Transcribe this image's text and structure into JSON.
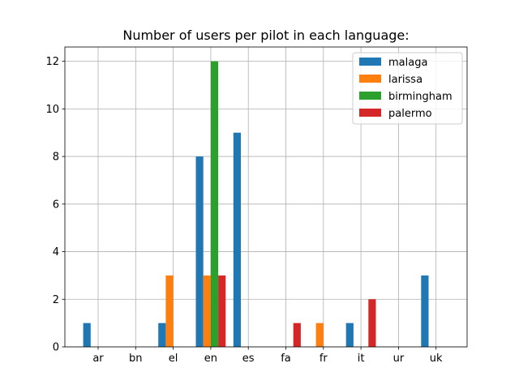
{
  "chart_data": {
    "type": "bar",
    "title": "Number of users per pilot in each language:",
    "xlabel": "",
    "ylabel": "",
    "categories": [
      "ar",
      "bn",
      "el",
      "en",
      "es",
      "fa",
      "fr",
      "it",
      "ur",
      "uk"
    ],
    "ylim": [
      0,
      12.6
    ],
    "yticks": [
      0,
      2,
      4,
      6,
      8,
      10,
      12
    ],
    "grid": true,
    "legend_position": "top-right",
    "series": [
      {
        "name": "malaga",
        "color": "#1f77b4",
        "values": [
          1,
          0,
          1,
          8,
          9,
          0,
          0,
          1,
          0,
          3
        ]
      },
      {
        "name": "larissa",
        "color": "#ff7f0e",
        "values": [
          0,
          0,
          3,
          3,
          0,
          0,
          1,
          0,
          0,
          0
        ]
      },
      {
        "name": "birmingham",
        "color": "#2ca02c",
        "values": [
          0,
          0,
          0,
          12,
          0,
          0,
          0,
          0,
          0,
          0
        ]
      },
      {
        "name": "palermo",
        "color": "#d62728",
        "values": [
          0,
          0,
          0,
          3,
          0,
          1,
          0,
          2,
          0,
          0
        ]
      }
    ]
  }
}
